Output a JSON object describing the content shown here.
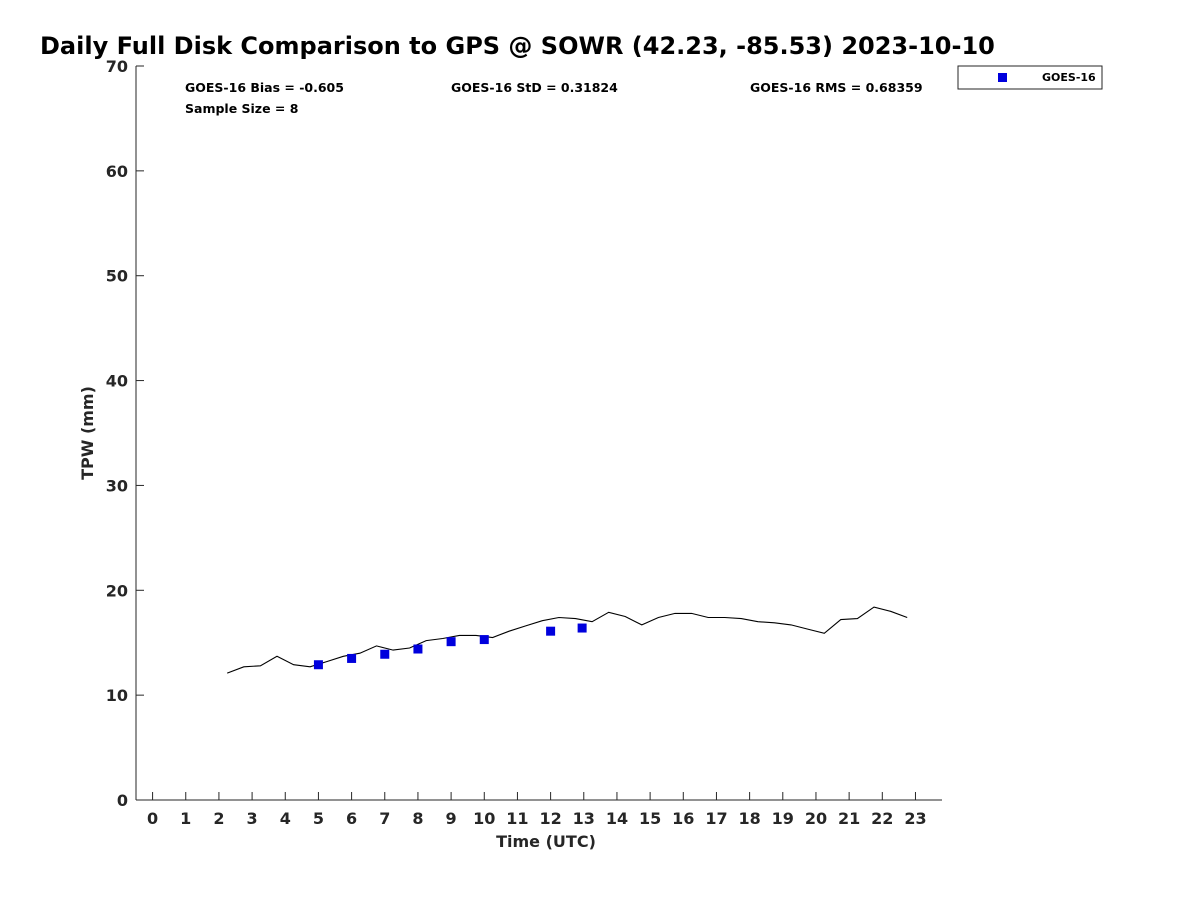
{
  "chart_data": {
    "type": "scatter",
    "title": "Daily Full Disk Comparison to GPS @ SOWR (42.23, -85.53) 2023-10-10",
    "xlabel": "Time (UTC)",
    "ylabel": "TPW (mm)",
    "xlim": [
      -0.5,
      23.8
    ],
    "ylim": [
      0,
      70
    ],
    "x_ticks": [
      "0",
      "1",
      "2",
      "3",
      "4",
      "5",
      "6",
      "7",
      "8",
      "9",
      "10",
      "11",
      "12",
      "13",
      "14",
      "15",
      "16",
      "17",
      "18",
      "19",
      "20",
      "21",
      "22",
      "23"
    ],
    "y_ticks": [
      "0",
      "10",
      "20",
      "30",
      "40",
      "50",
      "60",
      "70"
    ],
    "grid": false,
    "legend_position": "top-right, outside plot",
    "stats": {
      "bias": "GOES-16 Bias = -0.605",
      "std": "GOES-16 StD = 0.31824",
      "rms": "GOES-16 RMS = 0.68359",
      "sample_size": "Sample Size = 8"
    },
    "series": [
      {
        "name": "GOES-16",
        "kind": "scatter",
        "marker": "square",
        "color": "#0000dd",
        "x": [
          5.0,
          6.0,
          7.0,
          8.0,
          9.0,
          10.0,
          12.0,
          12.95
        ],
        "y": [
          12.9,
          13.5,
          13.9,
          14.4,
          15.1,
          15.3,
          16.1,
          16.4
        ]
      },
      {
        "kind": "line",
        "color": "#000000",
        "x": [
          2.25,
          2.75,
          3.25,
          3.75,
          4.25,
          4.75,
          5.25,
          5.75,
          6.25,
          6.75,
          7.25,
          7.75,
          8.25,
          8.75,
          9.25,
          9.75,
          10.25,
          10.75,
          11.25,
          11.75,
          12.25,
          12.75,
          13.25,
          13.75,
          14.25,
          14.75,
          15.25,
          15.75,
          16.25,
          16.75,
          17.25,
          17.75,
          18.25,
          18.75,
          19.25,
          19.75,
          20.25,
          20.75,
          21.25,
          21.75,
          22.25,
          22.75
        ],
        "y": [
          12.1,
          12.7,
          12.8,
          13.7,
          12.9,
          12.7,
          13.2,
          13.7,
          14.0,
          14.7,
          14.3,
          14.5,
          15.2,
          15.4,
          15.7,
          15.7,
          15.5,
          16.1,
          16.6,
          17.1,
          17.4,
          17.3,
          17.0,
          17.9,
          17.5,
          16.7,
          17.4,
          17.8,
          17.8,
          17.4,
          17.4,
          17.3,
          17.0,
          16.9,
          16.7,
          16.3,
          15.9,
          17.2,
          17.3,
          18.4,
          18.0,
          17.4
        ]
      }
    ]
  }
}
